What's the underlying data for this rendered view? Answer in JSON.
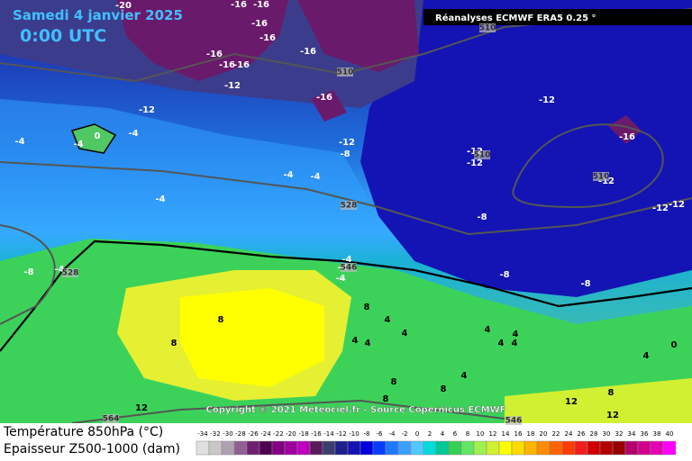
{
  "header": {
    "date": "Samedi 4 janvier 2025",
    "time": "0:00 UTC",
    "source": "Réanalyses ECMWF ERA5 0.25 °"
  },
  "map_labels": [
    -20,
    -16,
    -16,
    -16,
    -16,
    -16,
    -16,
    -16,
    -12,
    -16,
    -16,
    -12,
    -4,
    -4,
    0,
    -4,
    -12,
    -8,
    -4,
    -4,
    -4,
    -12,
    -16,
    -12,
    -12,
    -12,
    -12,
    -12,
    -8,
    -8,
    -4,
    -4,
    -4,
    -4,
    -8,
    -8,
    8,
    8,
    8,
    4,
    4,
    4,
    4,
    4,
    4,
    4,
    4,
    0,
    4,
    4,
    8,
    8,
    8,
    8,
    12,
    12,
    12
  ],
  "contour_labels": [
    510,
    510,
    510,
    510,
    528,
    528,
    546,
    546,
    564
  ],
  "copyright": "Copyright © 2021 Meteociel.fr - Source Copernicus ECMWF",
  "legend": {
    "temperature_label": "Température 850hPa (°C)",
    "thickness_label": "Epaisseur Z500-1000 (dam)",
    "scale_values": [
      -34,
      -32,
      -30,
      -28,
      -26,
      -24,
      -22,
      -20,
      -18,
      -16,
      -14,
      -12,
      -10,
      -8,
      -6,
      -4,
      -2,
      0,
      2,
      4,
      6,
      8,
      10,
      12,
      14,
      16,
      18,
      20,
      22,
      24,
      26,
      28,
      30,
      32,
      34,
      36,
      38,
      40
    ],
    "scale_colors": [
      "#e0e0e0",
      "#c8c8c8",
      "#b0a0b0",
      "#906090",
      "#702070",
      "#500050",
      "#800080",
      "#a000a0",
      "#c000c0",
      "#5a1a5a",
      "#3c3c6e",
      "#1e1e8c",
      "#1414b4",
      "#0000dc",
      "#0a3cff",
      "#1e78ff",
      "#3ca0ff",
      "#50c8ff",
      "#00dcdc",
      "#00c896",
      "#32d250",
      "#64e664",
      "#a0f050",
      "#d2f032",
      "#ffff00",
      "#ffdc00",
      "#ffb400",
      "#ff8c00",
      "#ff6400",
      "#ff3c00",
      "#f01e1e",
      "#d20000",
      "#b40000",
      "#960000",
      "#b4006e",
      "#d2008c",
      "#e600b4",
      "#ff00ff"
    ]
  }
}
